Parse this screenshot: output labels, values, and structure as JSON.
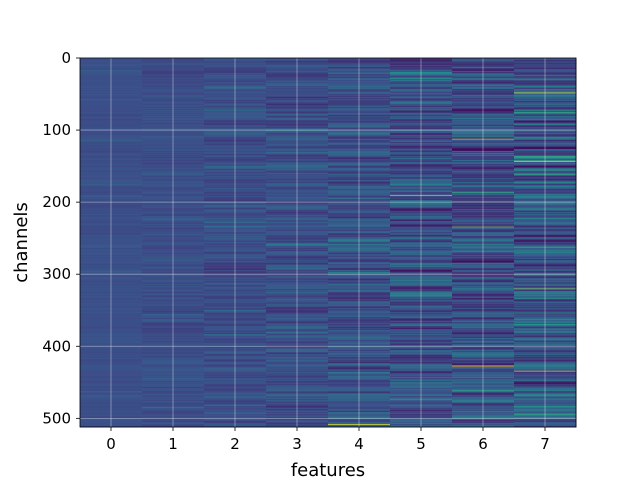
{
  "chart_data": {
    "type": "heatmap",
    "title": "",
    "xlabel": "features",
    "ylabel": "channels",
    "x_categories": [
      "0",
      "1",
      "2",
      "3",
      "4",
      "5",
      "6",
      "7"
    ],
    "y_ticks": [
      0,
      100,
      200,
      300,
      400,
      500
    ],
    "y_tick_labels": [
      "0",
      "100",
      "200",
      "300",
      "400",
      "500"
    ],
    "ylim": [
      0,
      512
    ],
    "y_inverted": true,
    "n_rows": 512,
    "n_cols": 8,
    "grid": true,
    "colormap": "viridis",
    "cmap_colors": [
      "#440154",
      "#3b528b",
      "#21918c",
      "#5ec962",
      "#fde725"
    ],
    "column_variability": [
      0.03,
      0.06,
      0.09,
      0.13,
      0.17,
      0.21,
      0.24,
      0.27
    ],
    "highlights": [
      {
        "feature": 4,
        "channel": 508,
        "value": 0.95
      },
      {
        "feature": 5,
        "channel": 190,
        "value": 0.9
      },
      {
        "feature": 5,
        "channel": 73,
        "value": 0.02
      },
      {
        "feature": 5,
        "channel": 375,
        "value": 0.05
      },
      {
        "feature": 6,
        "channel": 427,
        "value": 0.95
      },
      {
        "feature": 6,
        "channel": 112,
        "value": 0.85
      },
      {
        "feature": 6,
        "channel": 234,
        "value": 0.8
      },
      {
        "feature": 7,
        "channel": 48,
        "value": 0.95
      },
      {
        "feature": 7,
        "channel": 143,
        "value": 0.92
      },
      {
        "feature": 7,
        "channel": 262,
        "value": 0.6
      },
      {
        "feature": 7,
        "channel": 320,
        "value": 0.85
      },
      {
        "feature": 7,
        "channel": 434,
        "value": 0.9
      }
    ]
  }
}
